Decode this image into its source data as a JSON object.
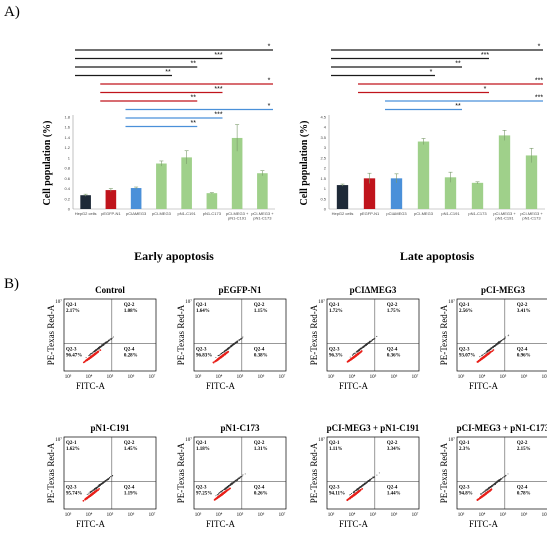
{
  "panel_labels": {
    "a": "A)",
    "b": "B)"
  },
  "colors": {
    "black": "#1a1a1a",
    "red": "#c0141c",
    "blue": "#4a90d9",
    "dark": "#1e2a38",
    "green": "#9fd08a",
    "flow_red": "#e8201a"
  },
  "chart_data": [
    {
      "type": "bar",
      "title": "Early apoptosis",
      "ylabel": "Cell population (%)",
      "categories": [
        "HepG2 cells",
        "pEGFP-N1",
        "pCIΔMEG3",
        "pCI-MEG3",
        "pN1-C191",
        "pN1-C173",
        "pCI-MEG3 + pN1-C191",
        "pCI-MEG3 + pN1-C173"
      ],
      "values": [
        0.27,
        0.37,
        0.41,
        0.89,
        1.01,
        0.31,
        1.39,
        0.7
      ],
      "errors": [
        0.02,
        0.03,
        0.02,
        0.05,
        0.13,
        0.01,
        0.26,
        0.05
      ],
      "bar_colors": [
        "#1e2a38",
        "#c0141c",
        "#4a90d9",
        "#9fd08a",
        "#9fd08a",
        "#9fd08a",
        "#9fd08a",
        "#9fd08a"
      ],
      "yticks": [
        "0",
        "0.2",
        "0.4",
        "0.6",
        "0.8",
        "1",
        "1.2",
        "1.4",
        "1.6",
        "1.8"
      ],
      "ylim": [
        0,
        1.8
      ],
      "sig_marks": [
        "*",
        "***",
        "**",
        "**",
        "*",
        "***",
        "**",
        "*",
        "***",
        "**"
      ]
    },
    {
      "type": "bar",
      "title": "Late apoptosis",
      "ylabel": "Cell population (%)",
      "categories": [
        "HepG2 cells",
        "pEGFP-N1",
        "pCIΔMEG3",
        "pCI-MEG3",
        "pN1-C191",
        "pN1-C173",
        "pCI-MEG3 + pN1-C191",
        "pCI-MEG3 + pN1-C173"
      ],
      "values": [
        1.17,
        1.5,
        1.5,
        3.3,
        1.55,
        1.28,
        3.6,
        2.62
      ],
      "errors": [
        0.05,
        0.25,
        0.22,
        0.15,
        0.25,
        0.05,
        0.25,
        0.35
      ],
      "bar_colors": [
        "#1e2a38",
        "#c0141c",
        "#4a90d9",
        "#9fd08a",
        "#9fd08a",
        "#9fd08a",
        "#9fd08a",
        "#9fd08a"
      ],
      "yticks": [
        "0",
        "0.5",
        "1",
        "1.5",
        "2",
        "2.5",
        "3",
        "3.5",
        "4",
        "4.5"
      ],
      "ylim": [
        0,
        4.5
      ],
      "sig_marks": [
        "*",
        "***",
        "**",
        "*",
        "***",
        "*",
        "***",
        "**"
      ]
    }
  ],
  "flow_panels": [
    {
      "title": "Control",
      "q1": "Q2-1\n2.17%",
      "q2": "Q2-2\n1.08%",
      "q3": "Q2-3\n96.47%",
      "q4": "Q2-4\n0.28%"
    },
    {
      "title": "pEGFP-N1",
      "q1": "Q2-1\n1.64%",
      "q2": "Q2-2\n1.15%",
      "q3": "Q2-3\n96.83%",
      "q4": "Q2-4\n0.38%"
    },
    {
      "title": "pCIΔMEG3",
      "q1": "Q2-1\n1.72%",
      "q2": "Q2-2\n1.75%",
      "q3": "Q2-3\n96.3%",
      "q4": "Q2-4\n0.36%"
    },
    {
      "title": "pCI-MEG3",
      "q1": "Q2-1\n2.56%",
      "q2": "Q2-2\n3.41%",
      "q3": "Q2-3\n93.07%",
      "q4": "Q2-4\n0.96%"
    },
    {
      "title": "pN1-C191",
      "q1": "Q2-1\n1.62%",
      "q2": "Q2-2\n1.45%",
      "q3": "Q2-3\n95.74%",
      "q4": "Q2-4\n1.19%"
    },
    {
      "title": "pN1-C173",
      "q1": "Q2-1\n1.18%",
      "q2": "Q2-2\n1.31%",
      "q3": "Q2-3\n97.25%",
      "q4": "Q2-4\n0.26%"
    },
    {
      "title": "pCI-MEG3 + pN1-C191",
      "q1": "Q2-1\n1.11%",
      "q2": "Q2-2\n3.34%",
      "q3": "Q2-3\n94.11%",
      "q4": "Q2-4\n1.44%"
    },
    {
      "title": "pCI-MEG3 + pN1-C173",
      "q1": "Q2-1\n2.3%",
      "q2": "Q2-2\n2.15%",
      "q3": "Q2-3\n94.8%",
      "q4": "Q2-4\n0.78%"
    }
  ],
  "flow_axes": {
    "x": "FITC-A",
    "y": "PE-Texas Red-A"
  },
  "flow_xticks": [
    "10³",
    "10⁴",
    "10⁵",
    "10⁶",
    "10⁷"
  ],
  "flow_ytick_top": "10⁷"
}
